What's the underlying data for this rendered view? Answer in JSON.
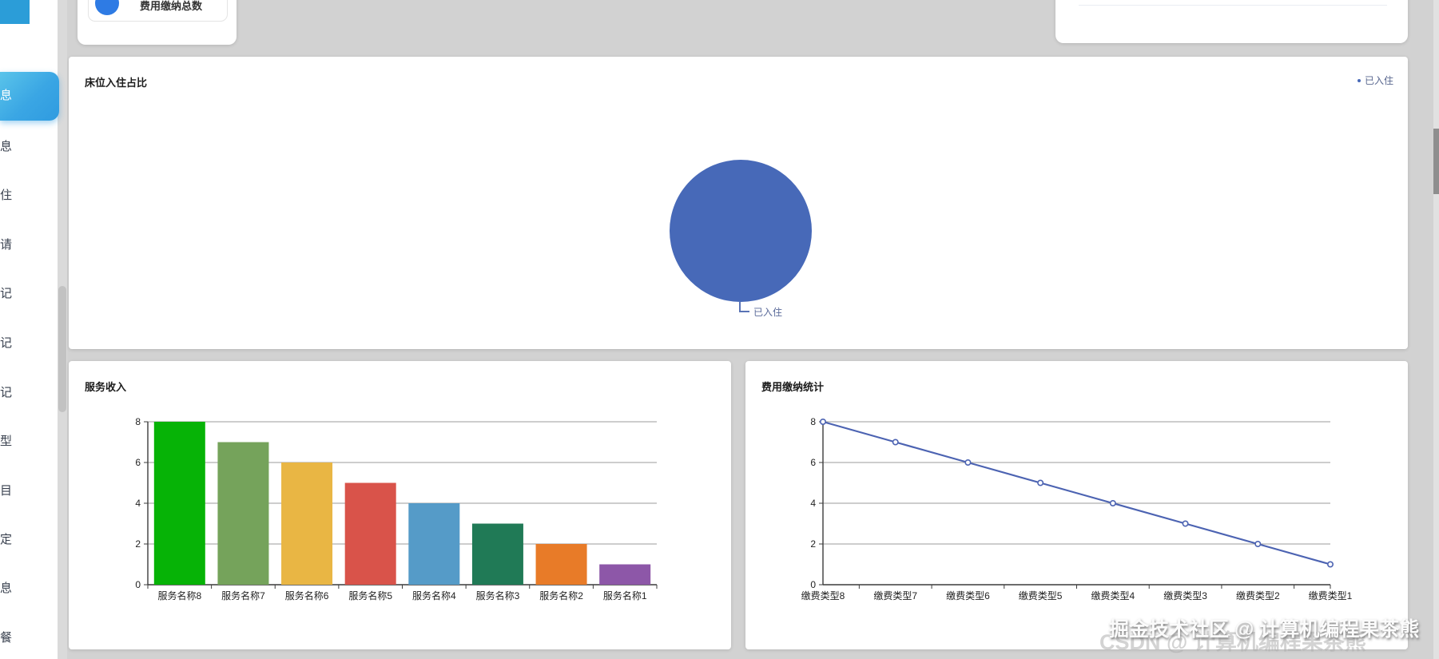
{
  "app": {
    "background": "#d2d2d2"
  },
  "sidebar": {
    "items": [
      {
        "label": "息",
        "active": true
      },
      {
        "label": "息",
        "active": false
      },
      {
        "label": "住",
        "active": false
      },
      {
        "label": "请",
        "active": false
      },
      {
        "label": "记",
        "active": false
      },
      {
        "label": "记",
        "active": false
      },
      {
        "label": "记",
        "active": false
      },
      {
        "label": "型",
        "active": false
      },
      {
        "label": "目",
        "active": false
      },
      {
        "label": "定",
        "active": false
      },
      {
        "label": "息",
        "active": false
      },
      {
        "label": "餐",
        "active": false
      }
    ]
  },
  "top_cards": {
    "fee_total": {
      "label": "费用缴纳总数",
      "icon": "blue-circle-badge",
      "icon_color": "#2e7be4"
    }
  },
  "panels": {
    "pie": {
      "title": "床位入住占比",
      "legend_label": "已入住",
      "slice_label": "已入住",
      "pie_color": "#4769b8"
    },
    "bar": {
      "title": "服务收入"
    },
    "line": {
      "title": "费用缴纳统计"
    }
  },
  "watermark": {
    "primary": "掘金技术社区 @ 计算机编程果茶熊",
    "secondary": "CSDN @ 计算机编程果茶熊"
  },
  "chart_data": [
    {
      "type": "pie",
      "title": "床位入住占比",
      "series": [
        {
          "name": "已入住",
          "value": 1,
          "share": "100%"
        }
      ],
      "colors": [
        "#4769b8"
      ],
      "legend": [
        "已入住"
      ],
      "legend_position": "top-right"
    },
    {
      "type": "bar",
      "title": "服务收入",
      "categories": [
        "服务名称8",
        "服务名称7",
        "服务名称6",
        "服务名称5",
        "服务名称4",
        "服务名称3",
        "服务名称2",
        "服务名称1"
      ],
      "values": [
        8,
        7,
        6,
        5,
        4,
        3,
        2,
        1
      ],
      "ylim": [
        0,
        8
      ],
      "yticks": [
        0,
        2,
        4,
        6,
        8
      ],
      "colors": [
        "#06b306",
        "#75a35b",
        "#e9b644",
        "#d9534a",
        "#559bc8",
        "#207a56",
        "#e87b28",
        "#8d57a8"
      ],
      "grid": true,
      "xlabel": "",
      "ylabel": ""
    },
    {
      "type": "line",
      "title": "费用缴纳统计",
      "categories": [
        "缴费类型8",
        "缴费类型7",
        "缴费类型6",
        "缴费类型5",
        "缴费类型4",
        "缴费类型3",
        "缴费类型2",
        "缴费类型1"
      ],
      "values": [
        8,
        7,
        6,
        5,
        4,
        3,
        2,
        1
      ],
      "ylim": [
        0,
        8
      ],
      "yticks": [
        0,
        2,
        4,
        6,
        8
      ],
      "color": "#4c63b2",
      "marker": "hollow-circle",
      "grid": true,
      "xlabel": "",
      "ylabel": ""
    }
  ]
}
